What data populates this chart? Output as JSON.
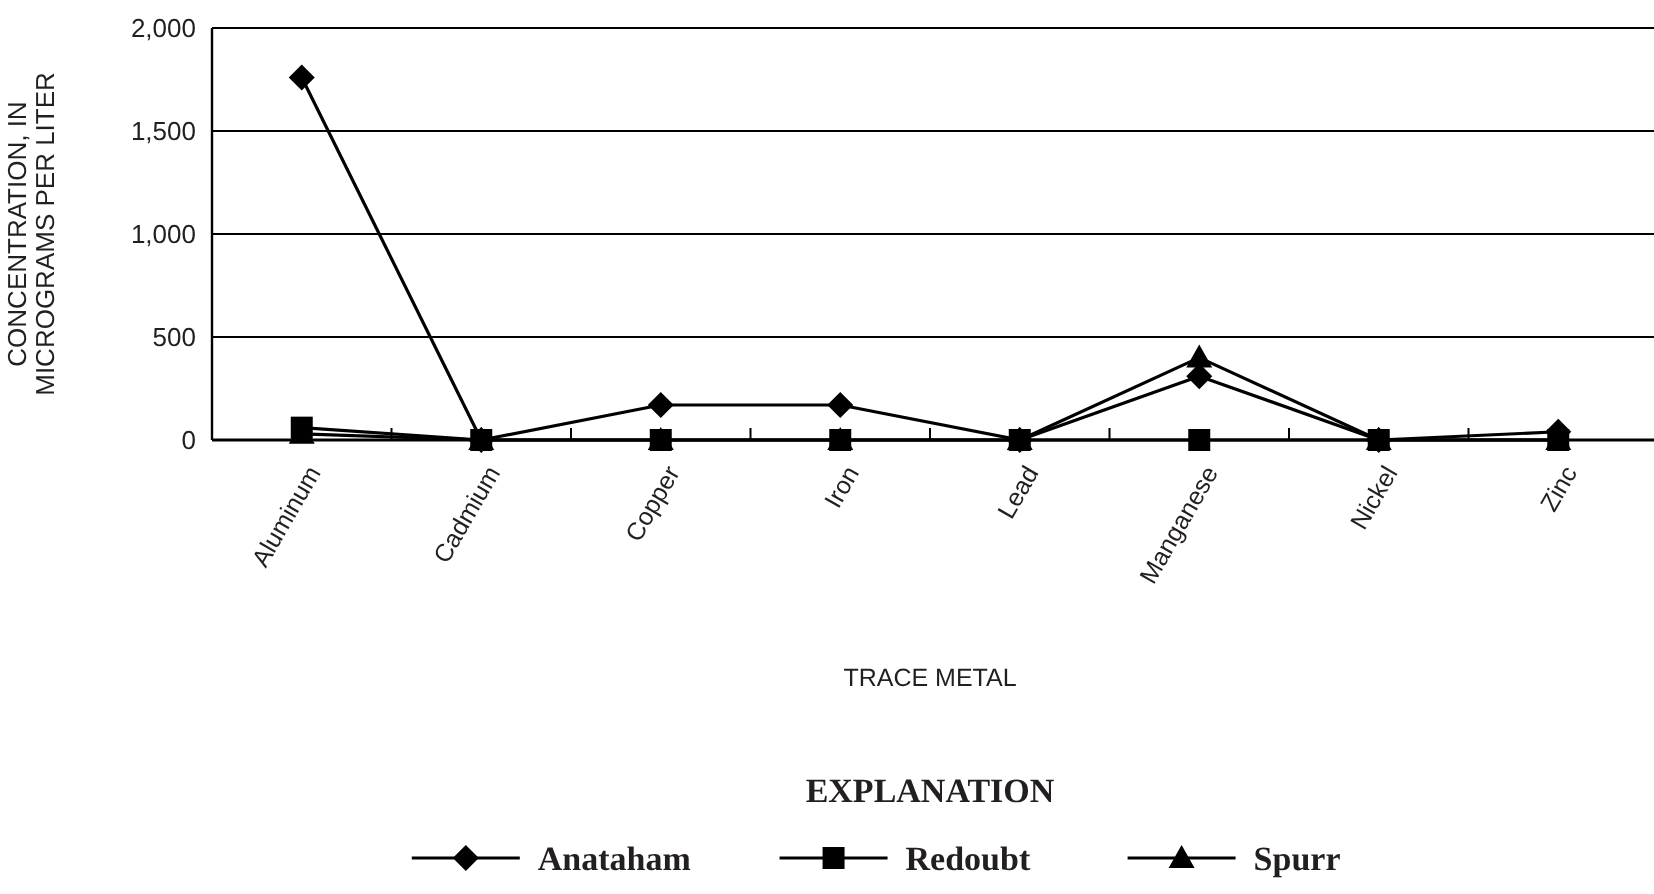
{
  "chart_data": {
    "type": "line",
    "xlabel": "TRACE METAL",
    "ylabel": "CONCENTRATION, IN\nMICROGRAMS PER LITER",
    "legend_title": "EXPLANATION",
    "categories": [
      "Aluminum",
      "Cadmium",
      "Copper",
      "Iron",
      "Lead",
      "Manganese",
      "Nickel",
      "Zinc"
    ],
    "series": [
      {
        "name": "Anataham",
        "color": "#000000",
        "marker": "diamond",
        "values": [
          1760,
          0,
          170,
          170,
          0,
          310,
          0,
          40
        ]
      },
      {
        "name": "Redoubt",
        "color": "#000000",
        "marker": "square",
        "values": [
          60,
          0,
          0,
          0,
          0,
          0,
          0,
          0
        ]
      },
      {
        "name": "Spurr",
        "color": "#000000",
        "marker": "triangle",
        "values": [
          30,
          0,
          0,
          0,
          0,
          400,
          0,
          0
        ]
      }
    ],
    "ylim": [
      0,
      2000
    ],
    "yticks": [
      0,
      {
        "value": 500,
        "label": "500"
      },
      {
        "value": 1000,
        "label": "1,000"
      },
      {
        "value": 1500,
        "label": "1,500"
      },
      {
        "value": 2000,
        "label": "2,000"
      }
    ],
    "grid": "y",
    "legend": "bottom"
  }
}
